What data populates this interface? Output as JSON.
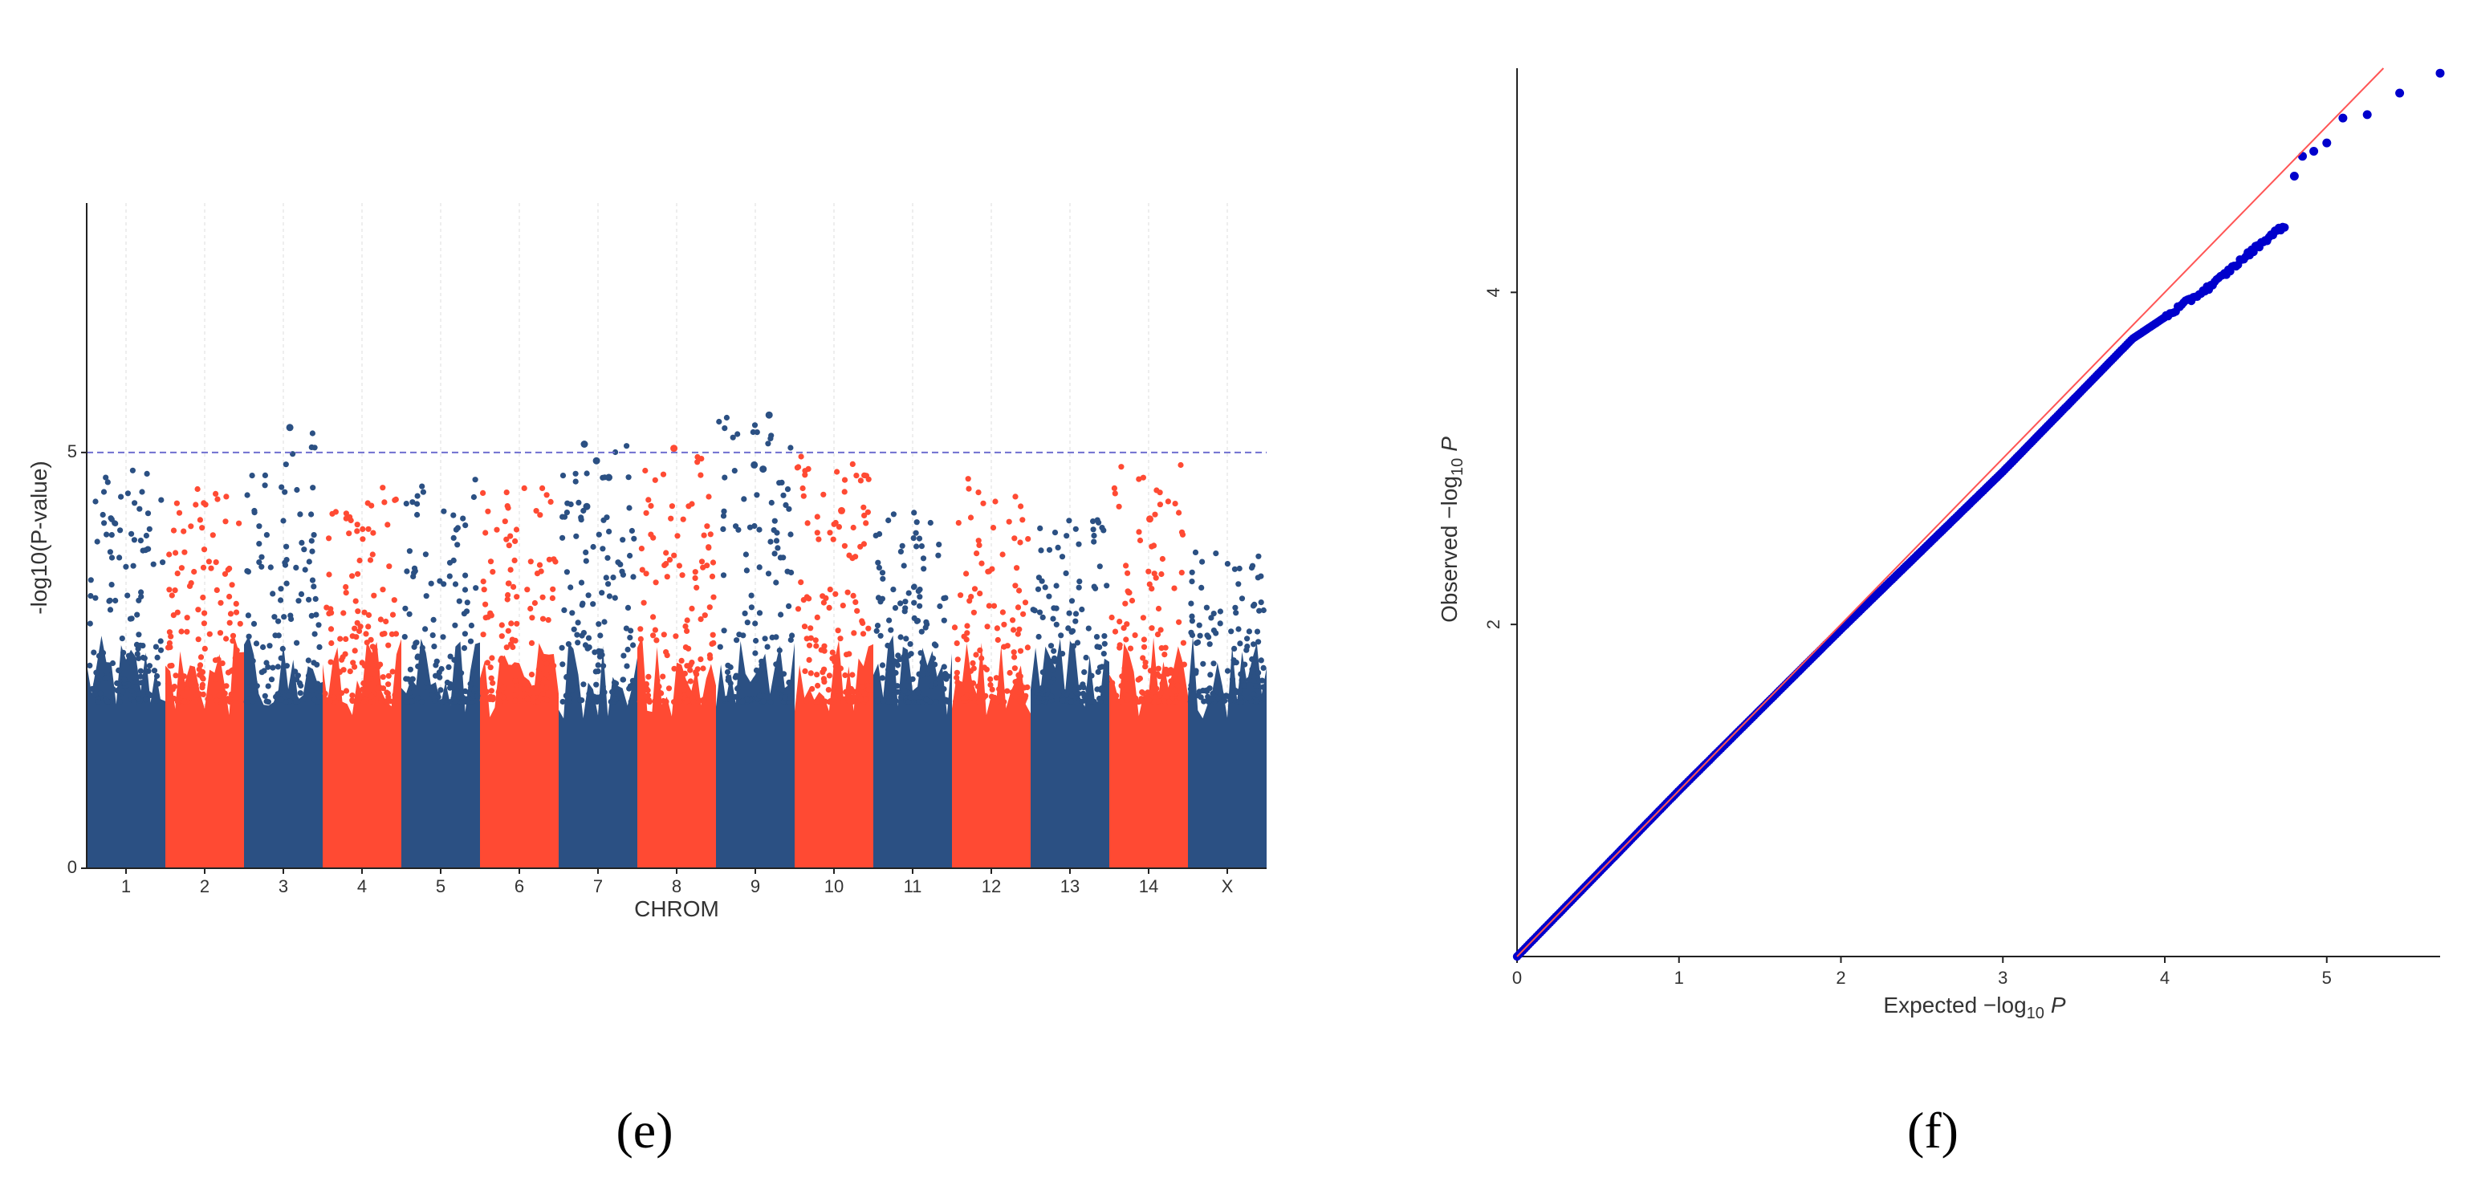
{
  "colors": {
    "blue": "#2b5083",
    "red": "#ff4a33",
    "qq_points": "#0000cc",
    "qq_line": "#ff5555",
    "threshold": "#6f6fd0"
  },
  "panels": {
    "e": "(e)",
    "f": "(f)"
  },
  "chart_data": [
    {
      "type": "scatter",
      "subtype": "manhattan",
      "xlabel": "CHROM",
      "ylabel": "-log10(P-value)",
      "ylim": [
        0,
        8
      ],
      "yticks": [
        0,
        5
      ],
      "threshold": 5,
      "chromosomes": [
        "1",
        "2",
        "3",
        "4",
        "5",
        "6",
        "7",
        "8",
        "9",
        "10",
        "11",
        "12",
        "13",
        "14",
        "X"
      ],
      "chromosome_colors": [
        "blue",
        "red",
        "blue",
        "red",
        "blue",
        "red",
        "blue",
        "red",
        "blue",
        "red",
        "blue",
        "red",
        "blue",
        "red",
        "blue"
      ],
      "max_values": [
        4.8,
        4.6,
        5.3,
        4.6,
        4.7,
        4.6,
        5.1,
        5.05,
        5.45,
        5.0,
        4.3,
        4.7,
        4.2,
        5.0,
        3.8
      ],
      "top_hits": [
        {
          "chrom": "3",
          "value": 5.3
        },
        {
          "chrom": "7",
          "value": 5.1
        },
        {
          "chrom": "7",
          "value": 4.9
        },
        {
          "chrom": "7",
          "value": 4.7
        },
        {
          "chrom": "8",
          "value": 5.05
        },
        {
          "chrom": "9",
          "value": 5.45
        },
        {
          "chrom": "9",
          "value": 4.85
        },
        {
          "chrom": "9",
          "value": 4.8
        },
        {
          "chrom": "7",
          "value": 4.35
        },
        {
          "chrom": "10",
          "value": 4.3
        },
        {
          "chrom": "14",
          "value": 4.2
        }
      ]
    },
    {
      "type": "scatter",
      "subtype": "qq",
      "xlabel": "Expected −log10 P",
      "ylabel": "Observed −log10 P",
      "xlabel_parts": {
        "pre": "Expected −log",
        "sub": "10",
        "var": "P"
      },
      "ylabel_parts": {
        "pre": "Observed −log",
        "sub": "10",
        "var": "P"
      },
      "xlim": [
        0,
        5.7
      ],
      "ylim": [
        0,
        5.35
      ],
      "xticks": [
        0,
        1,
        2,
        3,
        4,
        5
      ],
      "yticks": [
        2,
        4
      ],
      "reference_line": "y = x",
      "curve": [
        [
          0,
          0
        ],
        [
          1,
          1
        ],
        [
          2,
          1.97
        ],
        [
          3,
          2.92
        ],
        [
          3.5,
          3.42
        ],
        [
          3.8,
          3.72
        ],
        [
          4.0,
          3.85
        ],
        [
          4.3,
          4.05
        ],
        [
          4.6,
          4.3
        ],
        [
          4.8,
          4.45
        ],
        [
          5.2,
          5.05
        ],
        [
          5.4,
          5.2
        ],
        [
          5.7,
          5.35
        ]
      ]
    }
  ]
}
